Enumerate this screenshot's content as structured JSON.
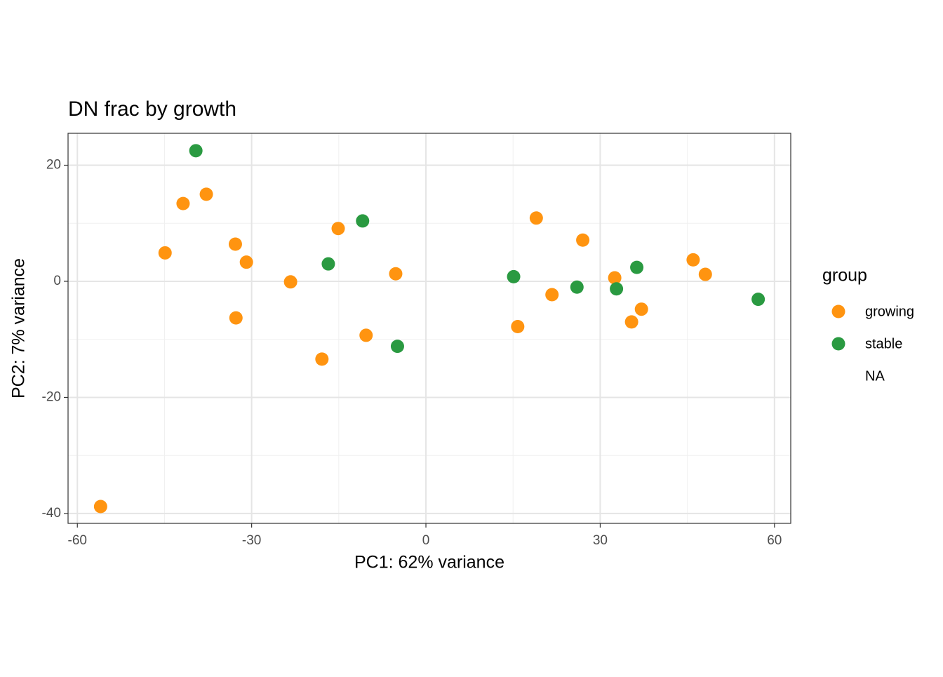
{
  "chart_data": {
    "type": "scatter",
    "title": "DN frac by growth",
    "x_label": "PC1: 62% variance",
    "y_label": "PC2: 7% variance",
    "xlim": [
      -61.6,
      62.8
    ],
    "ylim": [
      -41.7,
      25.5
    ],
    "xticks": [
      -60,
      -30,
      0,
      30,
      60
    ],
    "yticks": [
      -40,
      -20,
      0,
      20
    ],
    "minor_xticks": [
      -45,
      -15,
      15,
      45
    ],
    "minor_yticks": [
      -30,
      -10,
      10
    ],
    "grid": true,
    "legend_title": "group",
    "legend_position": "right",
    "series": [
      {
        "name": "growing",
        "color": "#ff9410",
        "x": [
          -56.0,
          -44.9,
          -41.8,
          -37.8,
          -32.8,
          -32.7,
          -30.9,
          -23.3,
          -17.9,
          -15.1,
          -10.3,
          -5.2,
          15.8,
          19.0,
          21.7,
          27.0,
          32.5,
          35.4,
          37.1,
          46.0,
          48.1
        ],
        "values": [
          -38.8,
          4.9,
          13.4,
          15.0,
          6.4,
          -6.3,
          3.3,
          -0.1,
          -13.4,
          9.1,
          -9.3,
          1.3,
          -7.8,
          10.9,
          -2.3,
          7.1,
          0.6,
          -7.0,
          -4.8,
          3.7,
          1.2
        ]
      },
      {
        "name": "stable",
        "color": "#2a9a41",
        "x": [
          -39.6,
          -16.8,
          -10.9,
          -4.9,
          15.1,
          26.0,
          32.8,
          36.3,
          57.2
        ],
        "values": [
          22.5,
          3.0,
          10.4,
          -11.2,
          0.8,
          -1.0,
          -1.3,
          2.4,
          -3.1
        ]
      },
      {
        "name": "NA",
        "x": [],
        "values": []
      }
    ]
  }
}
